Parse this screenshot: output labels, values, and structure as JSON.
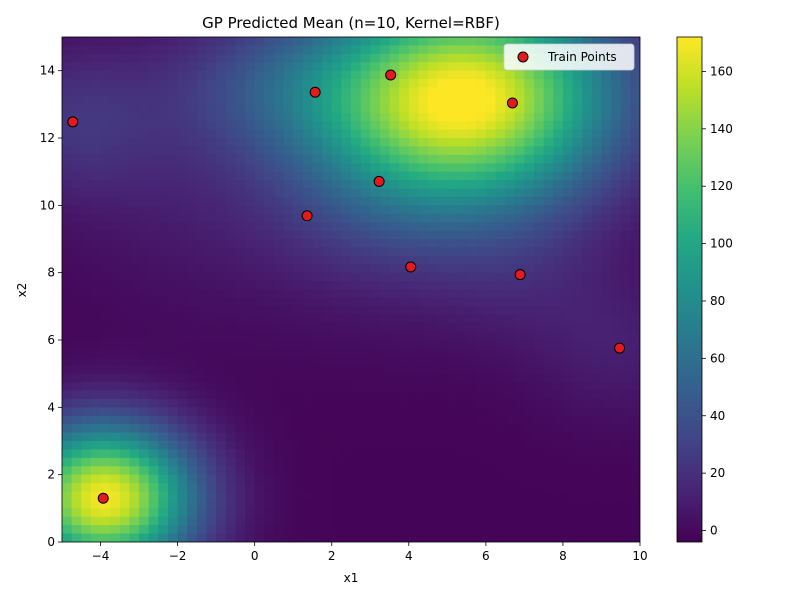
{
  "chart_data": {
    "type": "heatmap",
    "title": "GP Predicted Mean (n=10, Kernel=RBF)",
    "xlabel": "x1",
    "ylabel": "x2",
    "xlim": [
      -5,
      10
    ],
    "ylim": [
      0,
      15
    ],
    "x_ticks": [
      -4,
      -2,
      0,
      2,
      4,
      6,
      8,
      10
    ],
    "y_ticks": [
      0,
      2,
      4,
      6,
      8,
      10,
      12,
      14
    ],
    "colormap": "viridis",
    "colorbar": {
      "range": [
        -4,
        172
      ],
      "ticks": [
        0,
        20,
        40,
        60,
        80,
        100,
        120,
        140,
        160
      ]
    },
    "series": [
      {
        "name": "Train Points",
        "type": "scatter",
        "color": "#e41a1c",
        "edge_color": "#000000",
        "points": [
          {
            "x": -3.93,
            "y": 1.3
          },
          {
            "x": -4.72,
            "y": 12.48
          },
          {
            "x": 1.57,
            "y": 13.36
          },
          {
            "x": 3.53,
            "y": 13.87
          },
          {
            "x": 6.69,
            "y": 13.04
          },
          {
            "x": 3.23,
            "y": 10.71
          },
          {
            "x": 1.36,
            "y": 9.69
          },
          {
            "x": 4.05,
            "y": 8.17
          },
          {
            "x": 6.89,
            "y": 7.94
          },
          {
            "x": 9.47,
            "y": 5.76
          }
        ]
      }
    ],
    "legend": {
      "position": "top-right",
      "entries": [
        "Train Points"
      ]
    }
  }
}
